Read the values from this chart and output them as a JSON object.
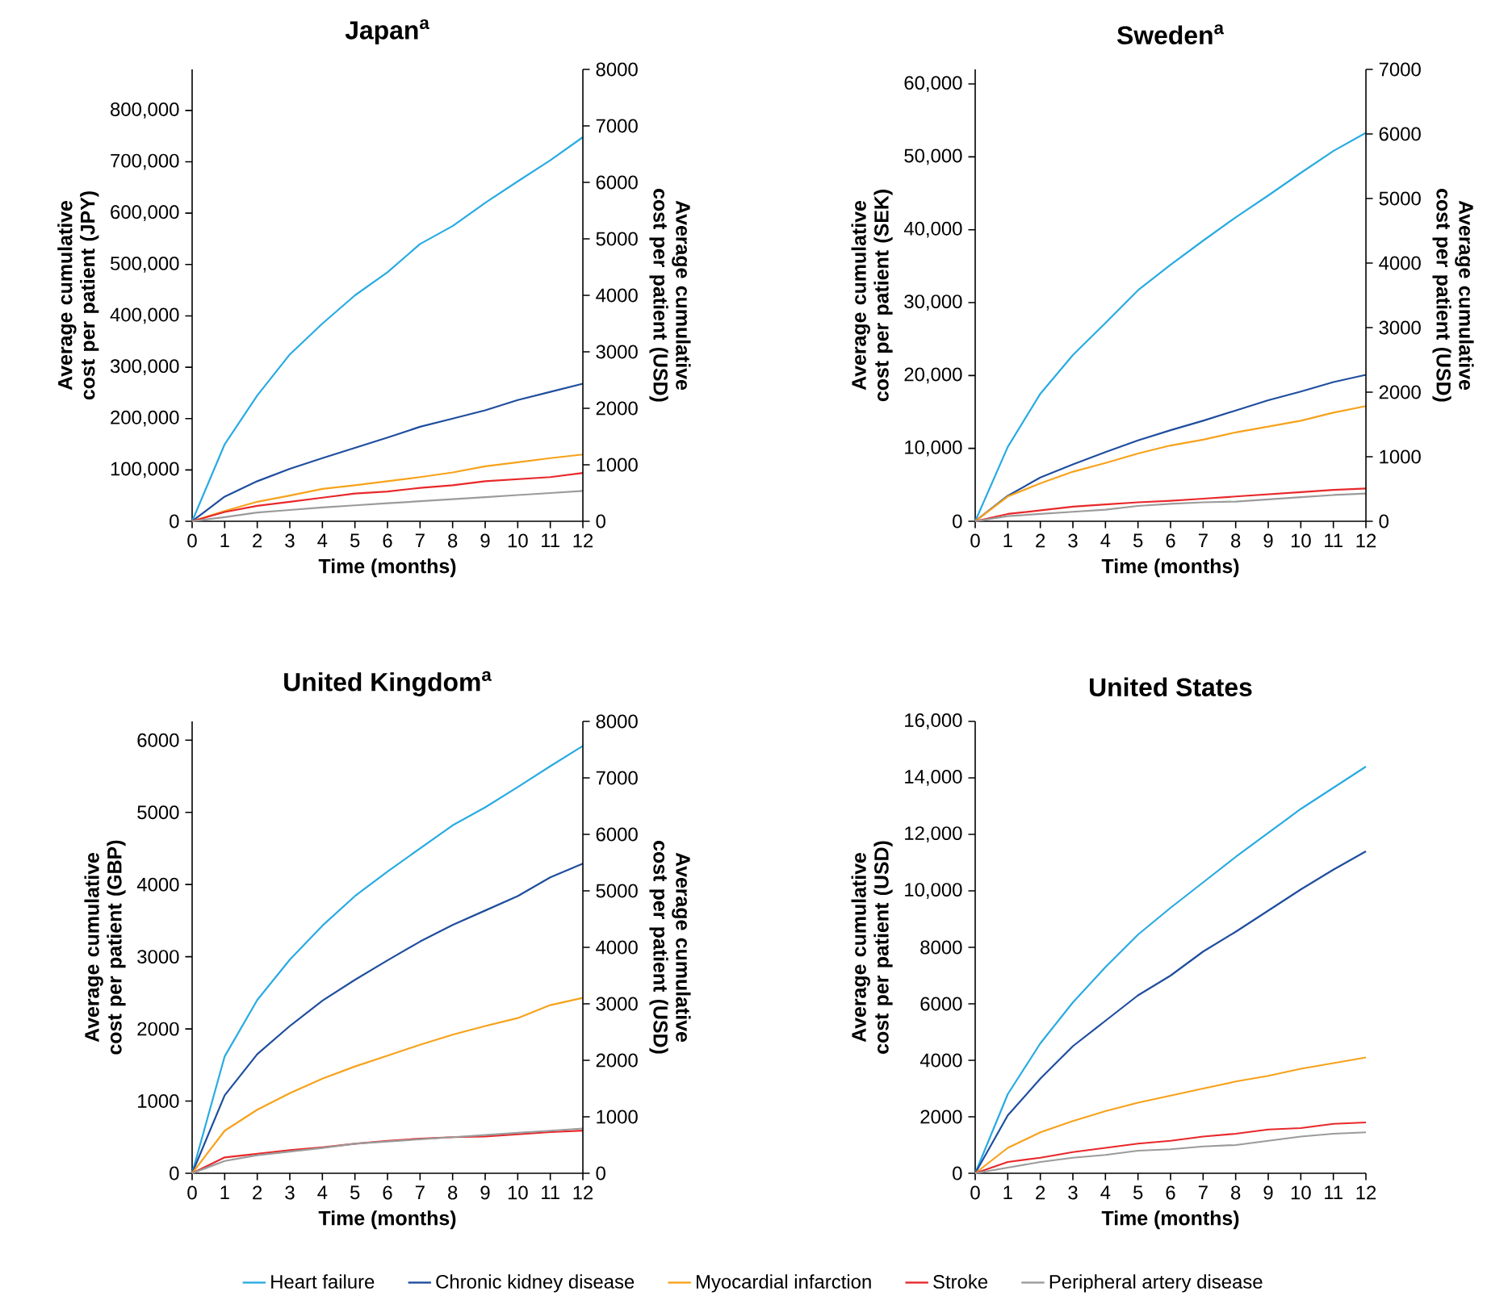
{
  "chart_data": [
    {
      "type": "line",
      "title": "Japan$^{a}$",
      "xlabel": "Time (months)",
      "ylabel": "Average cumulative cost per patient (JPY)",
      "y2label": "Average cumulative cost per patient (USD)",
      "x": [
        0,
        1,
        2,
        3,
        4,
        5,
        6,
        7,
        8,
        9,
        10,
        11,
        12
      ],
      "xlim": [
        0,
        12
      ],
      "xticks": [
        0,
        1,
        2,
        3,
        4,
        5,
        6,
        7,
        8,
        9,
        10,
        11,
        12
      ],
      "ylim": [
        0,
        880000
      ],
      "yticks": [
        0,
        {
          "value": 100000,
          "label": "100,000"
        },
        {
          "value": 200000,
          "label": "200,000"
        },
        {
          "value": 300000,
          "label": "300,000"
        },
        {
          "value": 400000,
          "label": "400,000"
        },
        {
          "value": 500000,
          "label": "500,000"
        },
        {
          "value": 600000,
          "label": "600,000"
        },
        {
          "value": 700000,
          "label": "700,000"
        },
        {
          "value": 800000,
          "label": "800,000"
        }
      ],
      "y2lim": [
        0,
        8000
      ],
      "y2ticks": [
        0,
        1000,
        2000,
        3000,
        4000,
        5000,
        6000,
        7000,
        8000
      ],
      "series": [
        {
          "color": "#29abe2",
          "values": [
            0,
            150000,
            245000,
            325000,
            385000,
            440000,
            485000,
            540000,
            575000,
            620000,
            662000,
            703000,
            748000
          ]
        },
        {
          "color": "#1f4e9e",
          "values": [
            0,
            48000,
            78000,
            102000,
            123000,
            143000,
            163000,
            184000,
            200000,
            216000,
            236000,
            252000,
            268000
          ]
        },
        {
          "color": "#f7a21b",
          "values": [
            0,
            20000,
            38000,
            50000,
            63000,
            70000,
            78000,
            86000,
            95000,
            107000,
            115000,
            123000,
            130000
          ]
        },
        {
          "color": "#e8282b",
          "values": [
            0,
            18000,
            30000,
            38000,
            46000,
            54000,
            58000,
            65000,
            70000,
            78000,
            82000,
            86000,
            94000
          ]
        },
        {
          "color": "#9b9b9b",
          "values": [
            0,
            8000,
            17000,
            22000,
            27000,
            31000,
            35000,
            39000,
            43000,
            47000,
            51000,
            55000,
            59000
          ]
        }
      ]
    },
    {
      "type": "line",
      "title": "Sweden$^{a}$",
      "xlabel": "Time (months)",
      "ylabel": "Average cumulative cost per patient (SEK)",
      "y2label": "Average cumulative cost per patient (USD)",
      "x": [
        0,
        1,
        2,
        3,
        4,
        5,
        6,
        7,
        8,
        9,
        10,
        11,
        12
      ],
      "xlim": [
        0,
        12
      ],
      "xticks": [
        0,
        1,
        2,
        3,
        4,
        5,
        6,
        7,
        8,
        9,
        10,
        11,
        12
      ],
      "ylim": [
        0,
        62000
      ],
      "yticks": [
        0,
        {
          "value": 10000,
          "label": "10,000"
        },
        {
          "value": 20000,
          "label": "20,000"
        },
        {
          "value": 30000,
          "label": "30,000"
        },
        {
          "value": 40000,
          "label": "40,000"
        },
        {
          "value": 50000,
          "label": "50,000"
        },
        {
          "value": 60000,
          "label": "60,000"
        }
      ],
      "y2lim": [
        0,
        7000
      ],
      "y2ticks": [
        0,
        1000,
        2000,
        3000,
        4000,
        5000,
        6000,
        7000
      ],
      "series": [
        {
          "color": "#29abe2",
          "values": [
            0,
            10200,
            17500,
            22800,
            27200,
            31700,
            35200,
            38500,
            41700,
            44700,
            47800,
            50800,
            53300
          ]
        },
        {
          "color": "#1f4e9e",
          "values": [
            0,
            3500,
            6000,
            7800,
            9500,
            11100,
            12500,
            13800,
            15200,
            16600,
            17800,
            19100,
            20100
          ]
        },
        {
          "color": "#f7a21b",
          "values": [
            0,
            3400,
            5200,
            6800,
            8000,
            9300,
            10400,
            11200,
            12200,
            13000,
            13800,
            14900,
            15800
          ]
        },
        {
          "color": "#e8282b",
          "values": [
            0,
            1000,
            1500,
            2000,
            2300,
            2600,
            2800,
            3100,
            3400,
            3700,
            4000,
            4300,
            4500
          ]
        },
        {
          "color": "#9b9b9b",
          "values": [
            0,
            700,
            1000,
            1300,
            1600,
            2100,
            2400,
            2600,
            2700,
            3000,
            3300,
            3600,
            3800
          ]
        }
      ]
    },
    {
      "type": "line",
      "title": "United Kingdom$^{a}$",
      "xlabel": "Time (months)",
      "ylabel": "Average cumulative cost per patient (GBP)",
      "y2label": "Average cumulative cost per patient (USD)",
      "x": [
        0,
        1,
        2,
        3,
        4,
        5,
        6,
        7,
        8,
        9,
        10,
        11,
        12
      ],
      "xlim": [
        0,
        12
      ],
      "xticks": [
        0,
        1,
        2,
        3,
        4,
        5,
        6,
        7,
        8,
        9,
        10,
        11,
        12
      ],
      "ylim": [
        0,
        6260
      ],
      "yticks": [
        0,
        1000,
        2000,
        3000,
        4000,
        5000,
        6000
      ],
      "y2lim": [
        0,
        8000
      ],
      "y2ticks": [
        0,
        1000,
        2000,
        3000,
        4000,
        5000,
        6000,
        7000,
        8000
      ],
      "series": [
        {
          "color": "#29abe2",
          "values": [
            0,
            1620,
            2400,
            2960,
            3430,
            3840,
            4180,
            4500,
            4820,
            5070,
            5350,
            5640,
            5920
          ]
        },
        {
          "color": "#1f4e9e",
          "values": [
            0,
            1080,
            1650,
            2040,
            2390,
            2680,
            2950,
            3210,
            3440,
            3640,
            3840,
            4100,
            4290
          ]
        },
        {
          "color": "#f7a21b",
          "values": [
            0,
            590,
            880,
            1110,
            1310,
            1480,
            1630,
            1780,
            1920,
            2040,
            2150,
            2330,
            2430
          ]
        },
        {
          "color": "#e8282b",
          "values": [
            0,
            220,
            270,
            320,
            360,
            410,
            450,
            480,
            500,
            510,
            540,
            570,
            590
          ]
        },
        {
          "color": "#9b9b9b",
          "values": [
            0,
            170,
            250,
            300,
            350,
            410,
            440,
            470,
            500,
            530,
            560,
            590,
            620
          ]
        }
      ]
    },
    {
      "type": "line",
      "title": "United States",
      "xlabel": "Time (months)",
      "ylabel": "Average cumulative cost per patient (USD)",
      "x": [
        0,
        1,
        2,
        3,
        4,
        5,
        6,
        7,
        8,
        9,
        10,
        11,
        12
      ],
      "xlim": [
        0,
        12
      ],
      "xticks": [
        0,
        1,
        2,
        3,
        4,
        5,
        6,
        7,
        8,
        9,
        10,
        11,
        12
      ],
      "ylim": [
        0,
        16000
      ],
      "yticks": [
        0,
        2000,
        4000,
        6000,
        8000,
        {
          "value": 10000,
          "label": "10,000"
        },
        {
          "value": 12000,
          "label": "12,000"
        },
        {
          "value": 14000,
          "label": "14,000"
        },
        {
          "value": 16000,
          "label": "16,000"
        }
      ],
      "legend": "bottom",
      "series": [
        {
          "name": "Heart failure",
          "color": "#29abe2",
          "values": [
            0,
            2800,
            4600,
            6050,
            7300,
            8450,
            9400,
            10300,
            11200,
            12050,
            12900,
            13650,
            14400
          ]
        },
        {
          "name": "Chronic kidney disease",
          "color": "#1f4e9e",
          "values": [
            0,
            2050,
            3350,
            4500,
            5400,
            6300,
            7000,
            7850,
            8550,
            9300,
            10050,
            10750,
            11400
          ]
        },
        {
          "name": "Myocardial infarction",
          "color": "#f7a21b",
          "values": [
            0,
            900,
            1450,
            1850,
            2200,
            2500,
            2750,
            3000,
            3250,
            3450,
            3700,
            3900,
            4100
          ]
        },
        {
          "name": "Stroke",
          "color": "#e8282b",
          "values": [
            0,
            400,
            550,
            750,
            900,
            1050,
            1150,
            1300,
            1400,
            1550,
            1600,
            1750,
            1800
          ]
        },
        {
          "name": "Peripheral artery disease",
          "color": "#9b9b9b",
          "values": [
            0,
            200,
            400,
            550,
            650,
            800,
            850,
            950,
            1000,
            1150,
            1300,
            1400,
            1450
          ]
        }
      ]
    }
  ]
}
